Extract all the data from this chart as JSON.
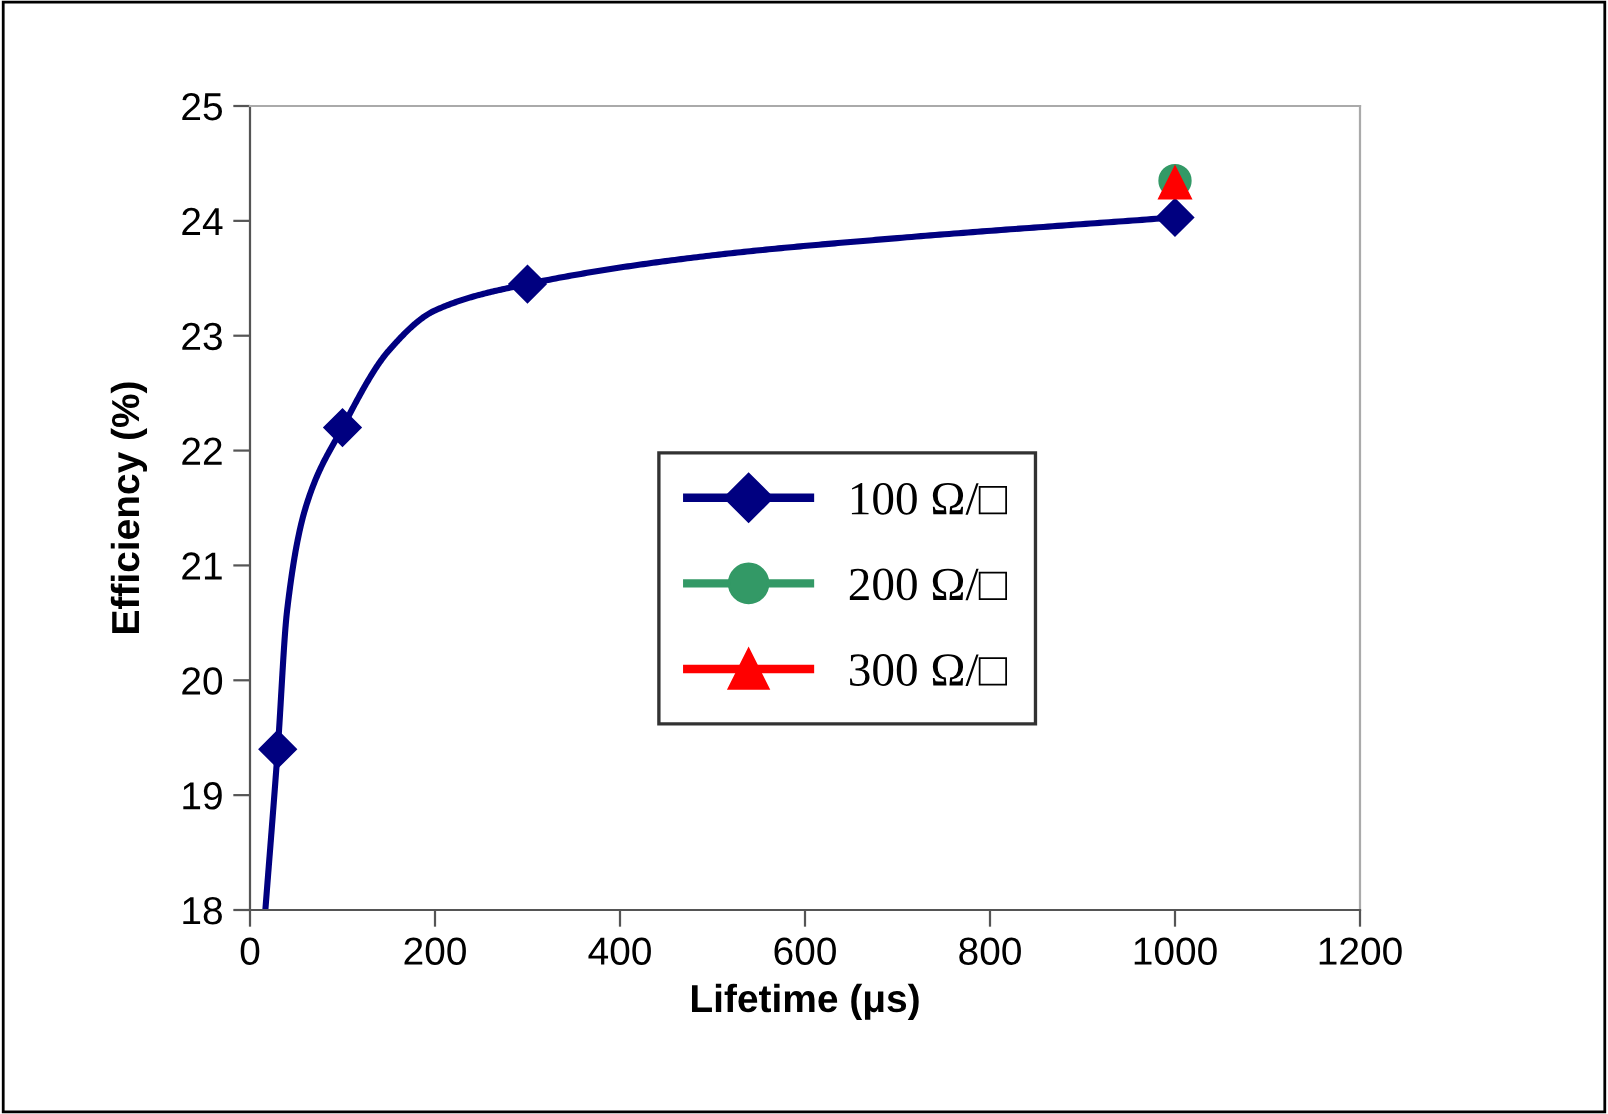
{
  "chart_data": {
    "type": "line",
    "xlabel": "Lifetime (μs)",
    "ylabel": "Efficiency (%)",
    "xlim": [
      0,
      1200
    ],
    "xticks": [
      0,
      200,
      400,
      600,
      800,
      1000,
      1200
    ],
    "ylim": [
      18,
      25
    ],
    "yticks": [
      18,
      19,
      20,
      21,
      22,
      23,
      24,
      25
    ],
    "grid": false,
    "legend": "center",
    "series": [
      {
        "color": "#000080",
        "x": [
          16.6,
          30,
          40,
          60,
          100,
          150,
          200,
          300,
          500,
          700,
          1000
        ],
        "values": [
          18,
          19.4,
          20.6,
          21.5,
          22.2,
          22.87,
          23.22,
          23.45,
          23.7,
          23.85,
          24.03
        ],
        "marker": "none"
      },
      {
        "type": "scatter",
        "name": "100 Ω/□",
        "color": "#000080",
        "x": [
          30,
          100,
          300,
          1000
        ],
        "values": [
          19.4,
          22.2,
          23.45,
          24.03
        ],
        "marker": "diamond"
      },
      {
        "type": "scatter",
        "name": "200 Ω/□",
        "color": "#339966",
        "x": [
          1000
        ],
        "values": [
          24.35
        ],
        "marker": "circle"
      },
      {
        "type": "scatter",
        "name": "300 Ω/□",
        "color": "#ff0000",
        "x": [
          1000
        ],
        "values": [
          24.33
        ],
        "marker": "triangle"
      }
    ]
  }
}
